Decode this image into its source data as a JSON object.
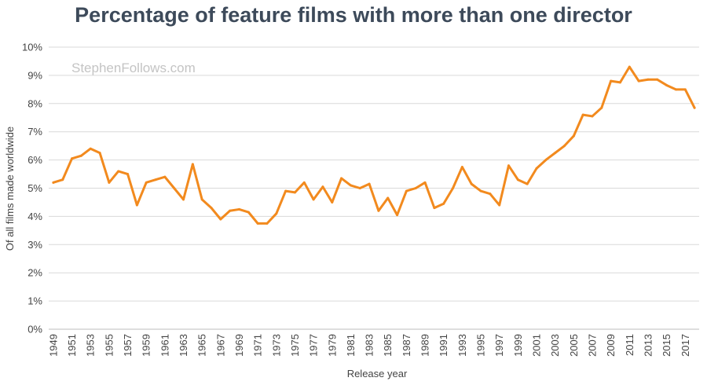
{
  "chart_data": {
    "type": "line",
    "title": "Percentage of feature films with more than one director",
    "xlabel": "Release year",
    "ylabel": "Of all films made worldwide",
    "watermark": "StephenFollows.com",
    "ylim": [
      0,
      10
    ],
    "xlim": [
      1949,
      2018
    ],
    "grid": true,
    "line_color": "#f28a1e",
    "y_ticks": [
      "0%",
      "1%",
      "2%",
      "3%",
      "4%",
      "5%",
      "6%",
      "7%",
      "8%",
      "9%",
      "10%"
    ],
    "x_ticks": [
      "1949",
      "1951",
      "1953",
      "1955",
      "1957",
      "1959",
      "1961",
      "1963",
      "1965",
      "1967",
      "1969",
      "1971",
      "1973",
      "1975",
      "1977",
      "1979",
      "1981",
      "1983",
      "1985",
      "1987",
      "1989",
      "1991",
      "1993",
      "1995",
      "1997",
      "1999",
      "2001",
      "2003",
      "2005",
      "2007",
      "2009",
      "2011",
      "2013",
      "2015",
      "2017"
    ],
    "series": [
      {
        "x": [
          1949,
          1950,
          1951,
          1952,
          1953,
          1954,
          1955,
          1956,
          1957,
          1958,
          1959,
          1960,
          1961,
          1962,
          1963,
          1964,
          1965,
          1966,
          1967,
          1968,
          1969,
          1970,
          1971,
          1972,
          1973,
          1974,
          1975,
          1976,
          1977,
          1978,
          1979,
          1980,
          1981,
          1982,
          1983,
          1984,
          1985,
          1986,
          1987,
          1988,
          1989,
          1990,
          1991,
          1992,
          1993,
          1994,
          1995,
          1996,
          1997,
          1998,
          1999,
          2000,
          2001,
          2002,
          2003,
          2004,
          2005,
          2006,
          2007,
          2008,
          2009,
          2010,
          2011,
          2012,
          2013,
          2014,
          2015,
          2016,
          2017,
          2018
        ],
        "values": [
          5.2,
          5.3,
          6.05,
          6.15,
          6.4,
          6.25,
          5.2,
          5.6,
          5.5,
          4.4,
          5.2,
          5.3,
          5.4,
          5.0,
          4.6,
          5.85,
          4.6,
          4.3,
          3.9,
          4.2,
          4.25,
          4.15,
          3.75,
          3.75,
          4.1,
          4.9,
          4.85,
          5.2,
          4.6,
          5.05,
          4.5,
          5.35,
          5.1,
          5.0,
          5.15,
          4.2,
          4.65,
          4.05,
          4.9,
          5.0,
          5.2,
          4.3,
          4.45,
          5.0,
          5.75,
          5.15,
          4.9,
          4.8,
          4.4,
          5.8,
          5.3,
          5.15,
          5.7,
          6.0,
          6.25,
          6.5,
          6.85,
          7.6,
          7.55,
          7.85,
          8.8,
          8.75,
          9.3,
          8.8,
          8.85,
          8.85,
          8.65,
          8.5,
          8.5,
          7.85
        ]
      }
    ]
  }
}
